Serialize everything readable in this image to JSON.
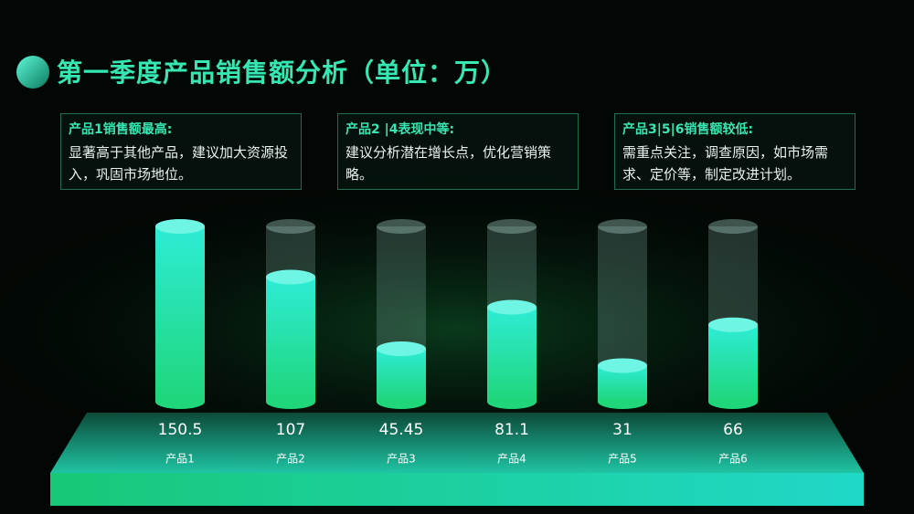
{
  "chart_data": {
    "type": "bar",
    "title": "第一季度产品销售额分析（单位：万）",
    "categories": [
      "产品1",
      "产品2",
      "产品3",
      "产品4",
      "产品5",
      "产品6"
    ],
    "values": [
      150.5,
      107,
      45.45,
      81.1,
      31,
      66
    ],
    "ylim": [
      0,
      150.5
    ],
    "color": "#27e3b0",
    "annotations": [
      {
        "title": "产品1销售额最高:",
        "text": "显著高于其他产品，建议加大资源投入，巩固市场地位。"
      },
      {
        "title": "产品2 |4表现中等:",
        "text": "建议分析潜在增长点，优化营销策略。"
      },
      {
        "title": "产品3|5|6销售额较低:",
        "text": "需重点关注，调查原因，如市场需求、定价等，制定改进计划。"
      }
    ]
  }
}
